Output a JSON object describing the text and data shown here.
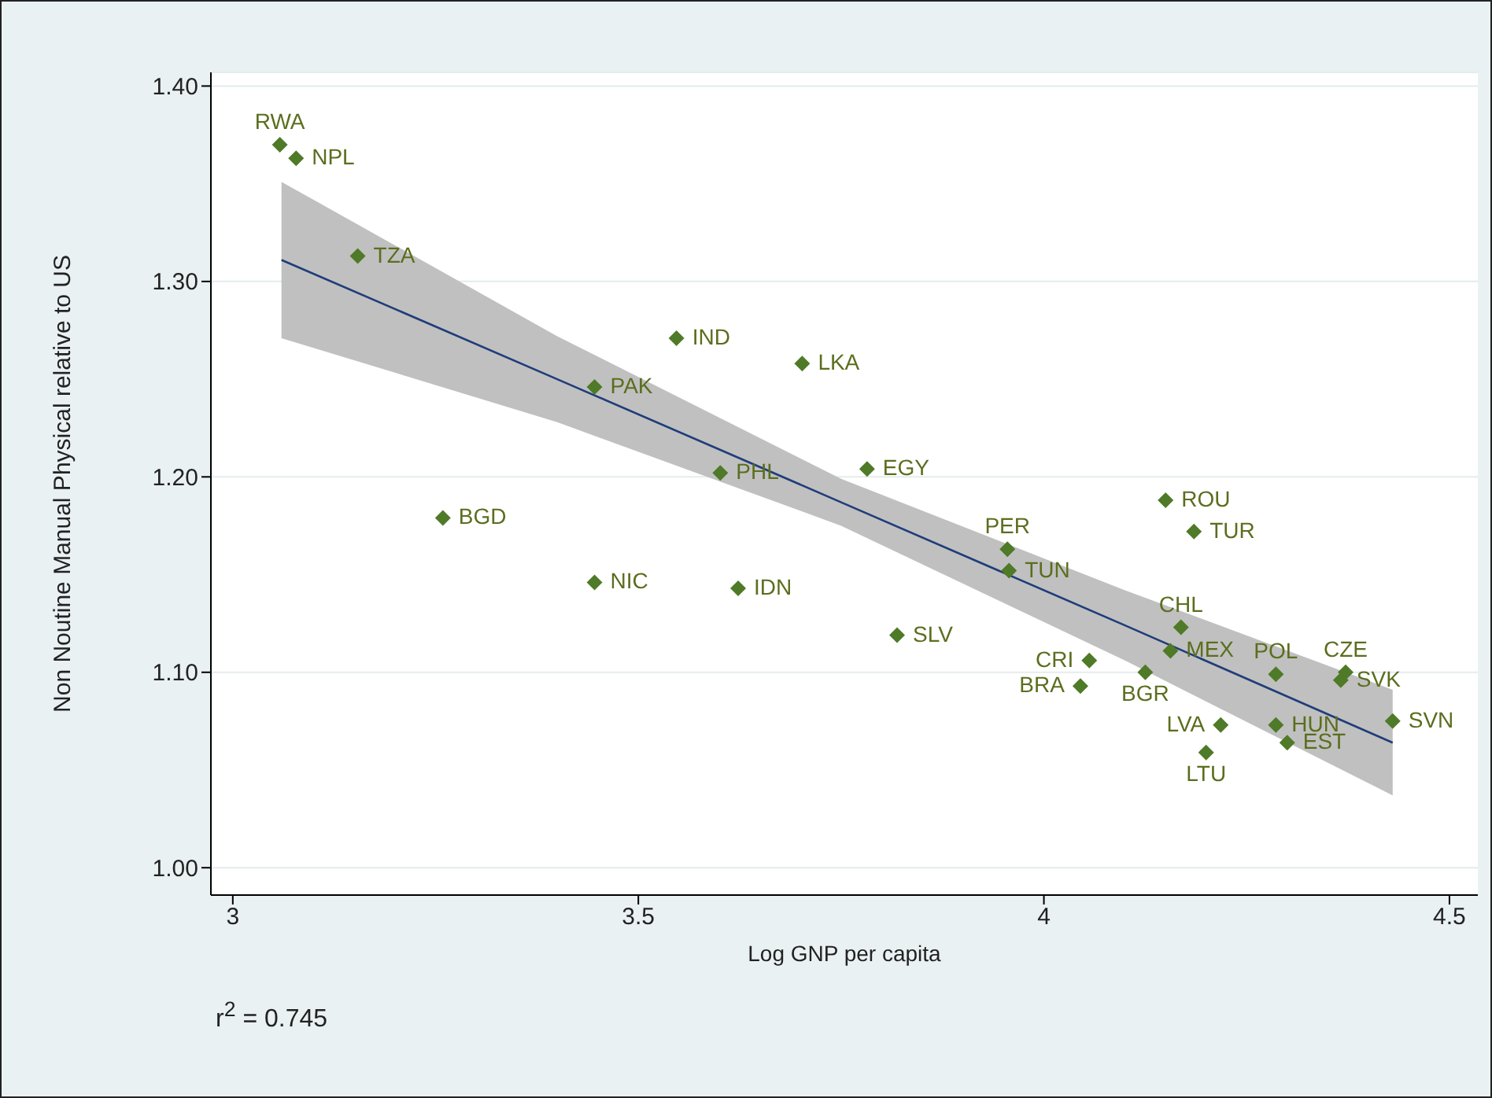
{
  "chart_data": {
    "type": "scatter",
    "xlabel": "Log GNP per capita",
    "ylabel": "Non Noutine Manual Physical relative to US",
    "xlim": [
      2.973,
      4.535
    ],
    "ylim": [
      0.986,
      1.407
    ],
    "xticks": [
      3,
      3.5,
      4,
      4.5
    ],
    "yticks": [
      {
        "value": 1.0,
        "label": "1.00"
      },
      {
        "value": 1.1,
        "label": "1.10"
      },
      {
        "value": 1.2,
        "label": "1.20"
      },
      {
        "value": 1.3,
        "label": "1.30"
      },
      {
        "value": 1.4,
        "label": "1.40"
      }
    ],
    "grid": "y",
    "legend": false,
    "series": [
      {
        "type": "line",
        "color": "#1f3d7a",
        "x": [
          3.06,
          3.4,
          3.75,
          4.1,
          4.43
        ],
        "values": [
          1.311,
          1.25,
          1.187,
          1.124,
          1.064
        ],
        "lower": [
          1.271,
          1.228,
          1.175,
          1.106,
          1.037
        ],
        "upper": [
          1.351,
          1.272,
          1.199,
          1.142,
          1.091
        ]
      },
      {
        "marker": "diamond",
        "color": "#4f7a28",
        "x": [
          3.058,
          3.078,
          3.154,
          3.547,
          3.702,
          3.446,
          3.601,
          3.782,
          3.259,
          3.623,
          3.446,
          3.819,
          3.955,
          3.957,
          4.15,
          4.185,
          4.169,
          4.156,
          4.286,
          4.372,
          4.366,
          4.43,
          4.056,
          4.045,
          4.125,
          4.218,
          4.286,
          4.3,
          4.2
        ],
        "values": [
          1.37,
          1.363,
          1.313,
          1.271,
          1.258,
          1.246,
          1.202,
          1.204,
          1.179,
          1.143,
          1.146,
          1.119,
          1.163,
          1.152,
          1.188,
          1.172,
          1.123,
          1.111,
          1.099,
          1.1,
          1.096,
          1.075,
          1.106,
          1.093,
          1.1,
          1.073,
          1.073,
          1.064,
          1.059
        ]
      }
    ],
    "annotations": [
      {
        "text": "RWA",
        "x": 3.058,
        "y": 1.37
      },
      {
        "text": "NPL",
        "x": 3.078,
        "y": 1.363
      },
      {
        "text": "TZA",
        "x": 3.154,
        "y": 1.313
      },
      {
        "text": "IND",
        "x": 3.547,
        "y": 1.271
      },
      {
        "text": "LKA",
        "x": 3.702,
        "y": 1.258
      },
      {
        "text": "PAK",
        "x": 3.446,
        "y": 1.246
      },
      {
        "text": "PHL",
        "x": 3.601,
        "y": 1.202
      },
      {
        "text": "EGY",
        "x": 3.782,
        "y": 1.204
      },
      {
        "text": "BGD",
        "x": 3.259,
        "y": 1.179
      },
      {
        "text": "IDN",
        "x": 3.623,
        "y": 1.143
      },
      {
        "text": "NIC",
        "x": 3.446,
        "y": 1.146
      },
      {
        "text": "SLV",
        "x": 3.819,
        "y": 1.119
      },
      {
        "text": "PER",
        "x": 3.955,
        "y": 1.163
      },
      {
        "text": "TUN",
        "x": 3.957,
        "y": 1.152
      },
      {
        "text": "ROU",
        "x": 4.15,
        "y": 1.188
      },
      {
        "text": "TUR",
        "x": 4.185,
        "y": 1.172
      },
      {
        "text": "CHL",
        "x": 4.169,
        "y": 1.123
      },
      {
        "text": "MEX",
        "x": 4.156,
        "y": 1.111
      },
      {
        "text": "POL",
        "x": 4.286,
        "y": 1.099
      },
      {
        "text": "CZE",
        "x": 4.372,
        "y": 1.1
      },
      {
        "text": "SVK",
        "x": 4.366,
        "y": 1.096
      },
      {
        "text": "SVN",
        "x": 4.43,
        "y": 1.075
      },
      {
        "text": "CRI",
        "x": 4.056,
        "y": 1.106
      },
      {
        "text": "BRA",
        "x": 4.045,
        "y": 1.093
      },
      {
        "text": "BGR",
        "x": 4.125,
        "y": 1.1
      },
      {
        "text": "LVA",
        "x": 4.218,
        "y": 1.073
      },
      {
        "text": "HUN",
        "x": 4.286,
        "y": 1.073
      },
      {
        "text": "EST",
        "x": 4.3,
        "y": 1.064
      },
      {
        "text": "LTU",
        "x": 4.2,
        "y": 1.059
      },
      "r$^{2}$ = 0.745"
    ]
  }
}
